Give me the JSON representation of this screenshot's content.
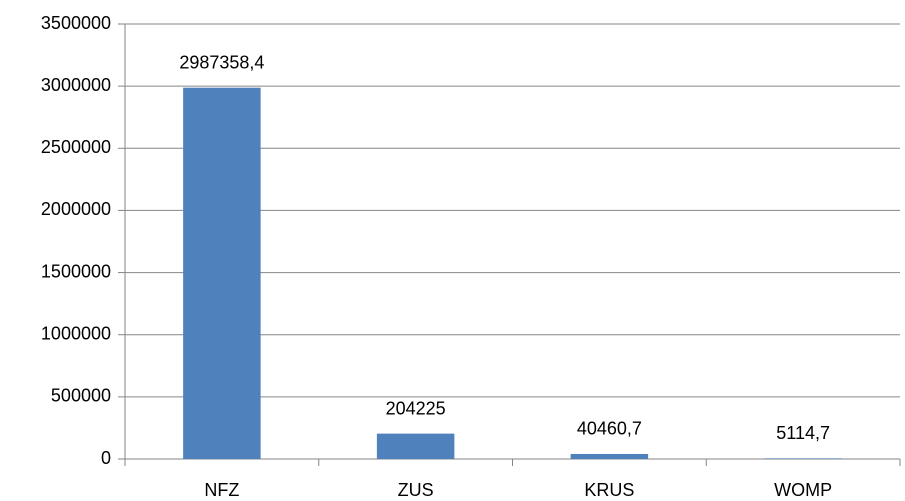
{
  "chart_data": {
    "type": "bar",
    "categories": [
      "NFZ",
      "ZUS",
      "KRUS",
      "WOMP"
    ],
    "values": [
      2987358.4,
      204225,
      40460.7,
      5114.7
    ],
    "value_labels": [
      "2987358,4",
      "204225",
      "40460,7",
      "5114,7"
    ],
    "color": "#4f81bd",
    "ylim": [
      0,
      3500000
    ],
    "yticks": [
      0,
      500000,
      1000000,
      1500000,
      2000000,
      2500000,
      3000000,
      3500000
    ],
    "grid": true
  }
}
